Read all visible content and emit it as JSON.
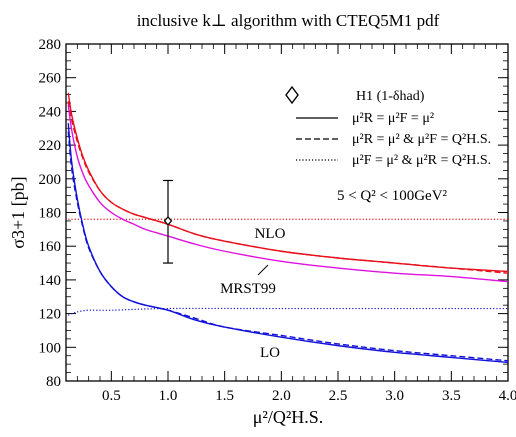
{
  "chart_data": {
    "type": "line",
    "title": "inclusive k⊥ algorithm with CTEQ5M1 pdf",
    "xlabel": "μ²/Q²H.S.",
    "ylabel": "σ3+1 [pb]",
    "xlim": [
      0.1,
      4.0
    ],
    "ylim": [
      80,
      280
    ],
    "x_ticks": [
      0.5,
      1.0,
      1.5,
      2.0,
      2.5,
      3.0,
      3.5,
      4.0
    ],
    "x_tick_labels": [
      "0.5",
      "1.0",
      "1.5",
      "2.0",
      "2.5",
      "3.0",
      "3.5",
      "4.0"
    ],
    "y_ticks": [
      80,
      100,
      120,
      140,
      160,
      180,
      200,
      220,
      240,
      260,
      280
    ],
    "y_tick_labels": [
      "80",
      "100",
      "120",
      "140",
      "160",
      "180",
      "200",
      "220",
      "240",
      "260",
      "280"
    ],
    "grid": false,
    "legend_position": "top-right",
    "legend": {
      "data_label": "H1 (1-δhad)",
      "solid_label": "μ²R = μ²F = μ²",
      "dashed_label": "μ²R = μ²  &  μ²F = Q²H.S.",
      "dotted_label": "μ²F = μ²  &  μ²R = Q²H.S."
    },
    "annotations": {
      "q2_range": "5  <  Q² < 100GeV²",
      "nlo": "NLO",
      "mrst": "MRST99",
      "lo": "LO"
    },
    "colors": {
      "nlo": "#e8101a",
      "mrst": "#e010e0",
      "lo": "#1010d8",
      "data": "#000000"
    },
    "series": [
      {
        "name": "NLO",
        "style": "solid",
        "color": "#e8101a",
        "x": [
          0.12,
          0.15,
          0.2,
          0.25,
          0.3,
          0.4,
          0.5,
          0.6,
          0.7,
          0.8,
          1.0,
          1.25,
          1.5,
          2.0,
          2.5,
          3.0,
          3.5,
          4.0
        ],
        "y": [
          251,
          238,
          224,
          213,
          205,
          193,
          186,
          182,
          179,
          177,
          173,
          167,
          163,
          157,
          153,
          150,
          147,
          145
        ]
      },
      {
        "name": "NLO",
        "style": "dashed",
        "color": "#e8101a",
        "x": [
          0.12,
          0.15,
          0.2,
          0.25,
          0.3,
          0.4,
          0.5,
          0.6,
          0.7,
          0.8,
          1.0,
          1.25,
          1.5,
          2.0,
          2.5,
          3.0,
          3.5,
          4.0
        ],
        "y": [
          246,
          235,
          222,
          212,
          204,
          193,
          186,
          182,
          179,
          177,
          173,
          167,
          163,
          157,
          153,
          150,
          147,
          144
        ]
      },
      {
        "name": "NLO",
        "style": "dotted",
        "color": "#e8101a",
        "x": [
          0.12,
          0.5,
          1.0,
          2.0,
          3.0,
          4.0
        ],
        "y": [
          176,
          176,
          176,
          176,
          176,
          176
        ]
      },
      {
        "name": "MRST99",
        "style": "solid",
        "color": "#e010e0",
        "x": [
          0.12,
          0.15,
          0.2,
          0.25,
          0.3,
          0.4,
          0.5,
          0.6,
          0.7,
          0.8,
          1.0,
          1.25,
          1.5,
          2.0,
          2.5,
          3.0,
          3.5,
          4.0
        ],
        "y": [
          244,
          229,
          213,
          203,
          196,
          186,
          180,
          176,
          173,
          170,
          166,
          161,
          157,
          151,
          147,
          144,
          142,
          139
        ]
      },
      {
        "name": "LO",
        "style": "solid",
        "color": "#1010d8",
        "x": [
          0.12,
          0.15,
          0.2,
          0.25,
          0.3,
          0.4,
          0.5,
          0.6,
          0.7,
          0.8,
          1.0,
          1.25,
          1.5,
          2.0,
          2.5,
          3.0,
          3.5,
          4.0
        ],
        "y": [
          233,
          210,
          188,
          172,
          160,
          145,
          136,
          130,
          127,
          125,
          122,
          116,
          112,
          106,
          101,
          97,
          94,
          91
        ]
      },
      {
        "name": "LO",
        "style": "dashed",
        "color": "#1010d8",
        "x": [
          0.12,
          0.15,
          0.2,
          0.25,
          0.3,
          0.4,
          0.5,
          0.6,
          0.7,
          0.8,
          1.0,
          1.25,
          1.5,
          2.0,
          2.5,
          3.0,
          3.5,
          4.0
        ],
        "y": [
          228,
          206,
          186,
          171,
          159,
          145,
          136,
          130,
          127,
          125,
          122,
          117,
          112,
          107,
          102,
          98,
          95,
          92
        ]
      },
      {
        "name": "LO",
        "style": "dotted",
        "color": "#1010d8",
        "x": [
          0.12,
          0.15,
          0.2,
          0.3,
          0.5,
          1.0,
          2.0,
          3.0,
          4.0
        ],
        "y": [
          119,
          120,
          121,
          122,
          122,
          123,
          123,
          123,
          123
        ]
      }
    ],
    "data_points": [
      {
        "x": 1.0,
        "y": 175,
        "yerr_low": 150,
        "yerr_high": 199
      }
    ]
  }
}
